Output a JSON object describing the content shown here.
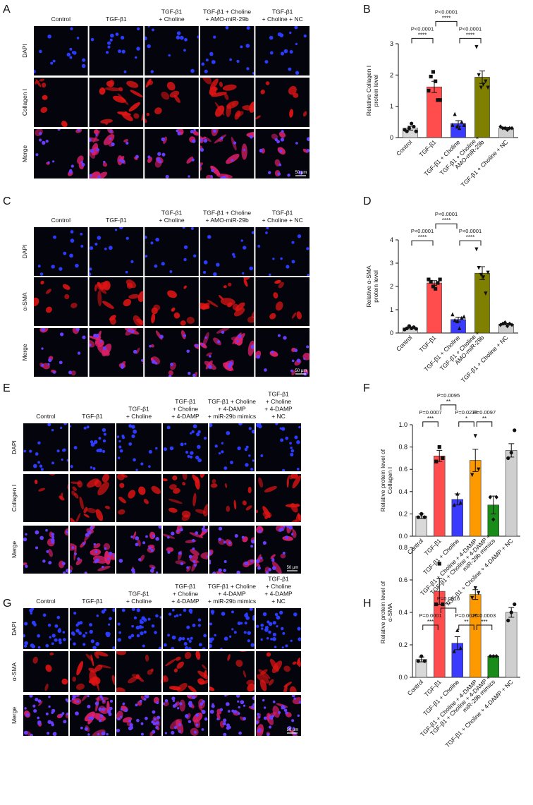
{
  "panels": [
    {
      "letter": "A",
      "columns": [
        "Control",
        "TGF-β1",
        "TGF-β1\n+ Choline",
        "TGF-β1 + Choline\n+ AMO-miR-29b",
        "TGF-β1\n+ Choline + NC"
      ],
      "rows": [
        "DAPI",
        "Collagen I",
        "Merge"
      ],
      "scale_bar": "50 μm"
    },
    {
      "letter": "C",
      "columns": [
        "Control",
        "TGF-β1",
        "TGF-β1\n+ Choline",
        "TGF-β1 + Choline\n+ AMO-miR-29b",
        "TGF-β1\n+ Choline + NC"
      ],
      "rows": [
        "DAPI",
        "α-SMA",
        "Merge"
      ],
      "scale_bar": "50 μm"
    },
    {
      "letter": "E",
      "columns": [
        "Control",
        "TGF-β1",
        "TGF-β1\n+ Choline",
        "TGF-β1\n+ Choline\n+ 4-DAMP",
        "TGF-β1 + Choline\n+ 4-DAMP\n+ miR-29b mimics",
        "TGF-β1\n+ Choline\n+ 4-DAMP\n+ NC"
      ],
      "rows": [
        "DAPI",
        "Collagen I",
        "Merge"
      ],
      "scale_bar": "50 μm"
    },
    {
      "letter": "G",
      "columns": [
        "Control",
        "TGF-β1",
        "TGF-β1\n+ Choline",
        "TGF-β1\n+ Choline\n+ 4-DAMP",
        "TGF-β1 + Choline\n+ 4-DAMP\n+ miR-29b mimics",
        "TGF-β1\n+ Choline\n+ 4-DAMP\n+ NC"
      ],
      "rows": [
        "DAPI",
        "α-SMA",
        "Merge"
      ],
      "scale_bar": "50 μm"
    }
  ],
  "chart_data": [
    {
      "panel": "B",
      "type": "bar",
      "ylabel": "Relative Collagen I\nprotein level",
      "categories": [
        "Control",
        "TGF-β1",
        "TGF-β1 + Choline",
        "TGF-β1 + Choline +\nAMO-miR-29b",
        "TGF-β1 + Choline + NC"
      ],
      "values": [
        0.3,
        1.62,
        0.45,
        1.93,
        0.3
      ],
      "errors": [
        0.06,
        0.18,
        0.09,
        0.2,
        0.03
      ],
      "colors": [
        "#d9d9d9",
        "#ff4d4d",
        "#3b3bff",
        "#808000",
        "#cfcfcf"
      ],
      "points": [
        [
          0.25,
          0.2,
          0.3,
          0.45,
          0.35,
          0.2
        ],
        [
          1.5,
          1.95,
          2.1,
          1.8,
          1.2,
          1.2
        ],
        [
          0.4,
          0.75,
          0.35,
          0.3,
          0.5,
          0.4
        ],
        [
          2.9,
          2.0,
          1.6,
          1.7,
          1.8,
          1.6
        ],
        [
          0.35,
          0.3,
          0.3,
          0.25,
          0.3,
          0.3
        ]
      ],
      "ylim": [
        0,
        3
      ],
      "yticks": [
        0,
        1,
        2,
        3
      ],
      "annotations": [
        {
          "pair": [
            "Control",
            "TGF-β1"
          ],
          "label": "P<0.0001",
          "stars": "****"
        },
        {
          "pair": [
            "TGF-β1",
            "TGF-β1 + Choline"
          ],
          "label": "P<0.0001",
          "stars": "****"
        },
        {
          "pair": [
            "TGF-β1 + Choline",
            "TGF-β1 + Choline +\nAMO-miR-29b"
          ],
          "label": "P<0.0001",
          "stars": "****"
        }
      ]
    },
    {
      "panel": "D",
      "type": "bar",
      "ylabel": "Relative α-SMA\nprotein level",
      "categories": [
        "Control",
        "TGF-β1",
        "TGF-β1 + Choline",
        "TGF-β1 + Choline +\nAMO-miR-29b",
        "TGF-β1 + Choline + NC"
      ],
      "values": [
        0.22,
        2.15,
        0.58,
        2.57,
        0.38
      ],
      "errors": [
        0.04,
        0.1,
        0.1,
        0.28,
        0.03
      ],
      "colors": [
        "#d9d9d9",
        "#ff4d4d",
        "#3b3bff",
        "#808000",
        "#cfcfcf"
      ],
      "points": [
        [
          0.15,
          0.2,
          0.3,
          0.2,
          0.25,
          0.18
        ],
        [
          2.3,
          2.2,
          2.0,
          1.9,
          2.15,
          2.3
        ],
        [
          0.8,
          0.55,
          0.5,
          0.2,
          0.65,
          0.7
        ],
        [
          3.6,
          2.8,
          2.5,
          2.4,
          1.7,
          2.6
        ],
        [
          0.35,
          0.4,
          0.45,
          0.3,
          0.4,
          0.35
        ]
      ],
      "ylim": [
        0,
        4
      ],
      "yticks": [
        0,
        1,
        2,
        3,
        4
      ],
      "annotations": [
        {
          "pair": [
            "Control",
            "TGF-β1"
          ],
          "label": "P<0.0001",
          "stars": "****"
        },
        {
          "pair": [
            "TGF-β1",
            "TGF-β1 + Choline"
          ],
          "label": "P<0.0001",
          "stars": "****"
        },
        {
          "pair": [
            "TGF-β1 + Choline",
            "TGF-β1 + Choline +\nAMO-miR-29b"
          ],
          "label": "P<0.0001",
          "stars": "****"
        }
      ]
    },
    {
      "panel": "F",
      "type": "bar",
      "ylabel": "Relative protein level of\nCollagen I",
      "categories": [
        "Control",
        "TGF-β1",
        "TGF-β1 + Choline",
        "TGF-β1 + Choline + 4-DAMP",
        "TGF-β1 + Choline + 4-DAMP +\nmiR-29b mimics",
        "TGF-β1 + Choline + 4-DAMP + NC"
      ],
      "values": [
        0.18,
        0.72,
        0.33,
        0.68,
        0.28,
        0.77
      ],
      "errors": [
        0.02,
        0.05,
        0.05,
        0.1,
        0.08,
        0.06
      ],
      "colors": [
        "#d9d9d9",
        "#ff4d4d",
        "#3b3bff",
        "#ff9900",
        "#1a8c1a",
        "#cfcfcf"
      ],
      "points": [
        [
          0.17,
          0.2,
          0.17
        ],
        [
          0.67,
          0.8,
          0.7
        ],
        [
          0.28,
          0.38,
          0.3
        ],
        [
          0.55,
          0.9,
          0.6
        ],
        [
          0.35,
          0.15,
          0.35
        ],
        [
          0.7,
          0.75,
          0.95
        ]
      ],
      "ylim": [
        0,
        1
      ],
      "yticks": [
        {
          "value": 0,
          "label": "0.0"
        },
        0.2,
        0.4,
        0.6,
        0.8,
        {
          "value": 1,
          "label": "1.0"
        }
      ],
      "annotations": [
        {
          "pair": [
            "Control",
            "TGF-β1"
          ],
          "label": "P=0.0007",
          "stars": "***"
        },
        {
          "pair": [
            "TGF-β1",
            "TGF-β1 + Choline"
          ],
          "label": "P=0.0095",
          "stars": "**"
        },
        {
          "pair": [
            "TGF-β1 + Choline",
            "TGF-β1 + Choline + 4-DAMP"
          ],
          "label": "P=0.0233",
          "stars": "*"
        },
        {
          "pair": [
            "TGF-β1 + Choline + 4-DAMP",
            "TGF-β1 + Choline + 4-DAMP +\nmiR-29b mimics"
          ],
          "label": "P=0.0097",
          "stars": "**"
        }
      ]
    },
    {
      "panel": "H",
      "type": "bar",
      "ylabel": "Relative protein level of\nα-SMA",
      "categories": [
        "Control",
        "TGF-β1",
        "TGF-β1 + Choline",
        "TGF-β1 + Choline + 4-DAMP",
        "TGF-β1 + Choline + 4-DAMP +\nmiR-29b mimics",
        "TGF-β1 + Choline + 4-DAMP + NC"
      ],
      "values": [
        0.11,
        0.53,
        0.21,
        0.51,
        0.13,
        0.4
      ],
      "errors": [
        0.015,
        0.08,
        0.04,
        0.03,
        0.005,
        0.03
      ],
      "colors": [
        "#d9d9d9",
        "#ff4d4d",
        "#3b3bff",
        "#ff9900",
        "#1a8c1a",
        "#cfcfcf"
      ],
      "points": [
        [
          0.1,
          0.13,
          0.1
        ],
        [
          0.45,
          0.7,
          0.45
        ],
        [
          0.16,
          0.29,
          0.18
        ],
        [
          0.49,
          0.55,
          0.52
        ],
        [
          0.13,
          0.13,
          0.13
        ],
        [
          0.35,
          0.4,
          0.45
        ]
      ],
      "ylim": [
        0,
        0.8
      ],
      "yticks": [
        {
          "value": 0,
          "label": "0.0"
        },
        0.2,
        0.4,
        0.6,
        0.8
      ],
      "annotations": [
        {
          "pair": [
            "Control",
            "TGF-β1"
          ],
          "label": "P=0.0001",
          "stars": "***"
        },
        {
          "pair": [
            "TGF-β1",
            "TGF-β1 + Choline"
          ],
          "label": "P=0.0016",
          "stars": "**"
        },
        {
          "pair": [
            "TGF-β1 + Choline",
            "TGF-β1 + Choline + 4-DAMP"
          ],
          "label": "P=0.0026",
          "stars": "**"
        },
        {
          "pair": [
            "TGF-β1 + Choline + 4-DAMP",
            "TGF-β1 + Choline + 4-DAMP +\nmiR-29b mimics"
          ],
          "label": "P=0.0003",
          "stars": "***"
        }
      ]
    }
  ]
}
